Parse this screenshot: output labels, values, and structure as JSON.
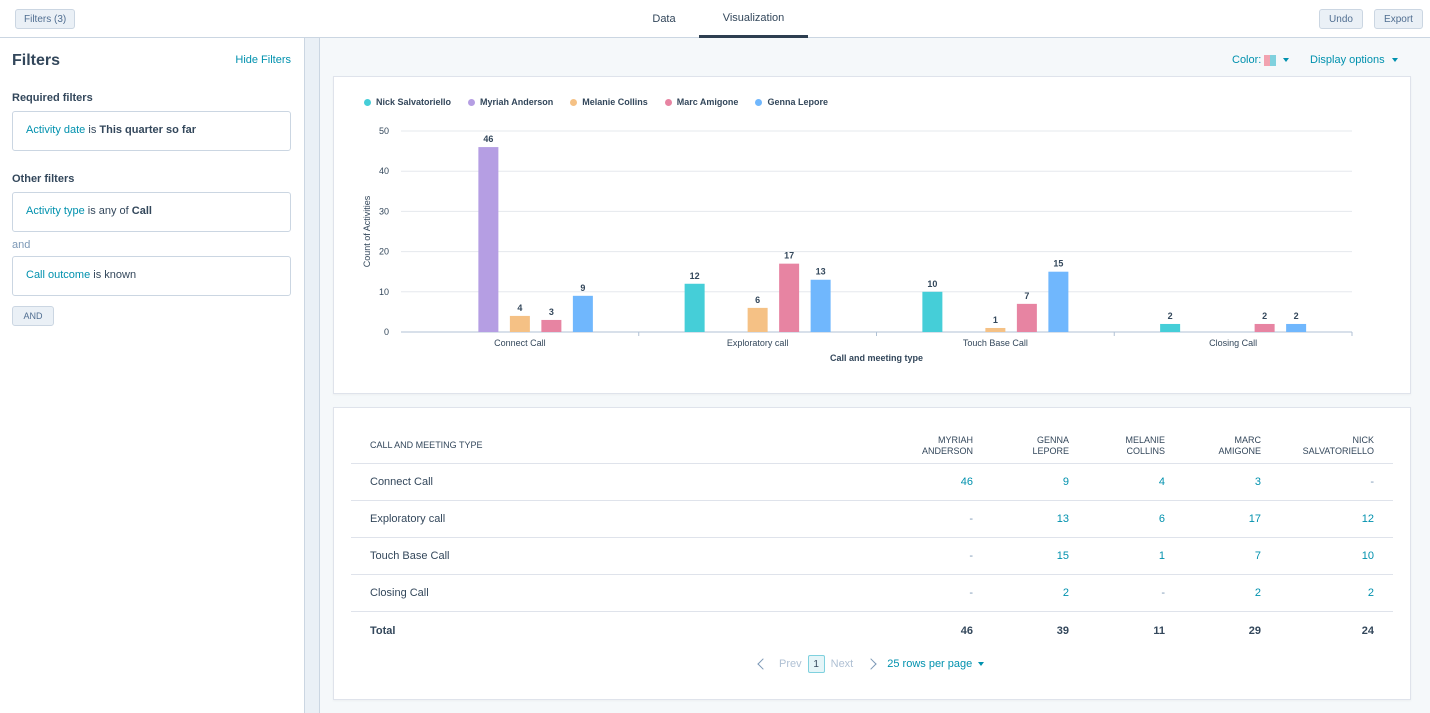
{
  "topbar": {
    "filters_button": "Filters (3)",
    "tabs": [
      {
        "label": "Data"
      },
      {
        "label": "Visualization"
      }
    ],
    "undo_label": "Undo",
    "export_label": "Export"
  },
  "filters_panel": {
    "title": "Filters",
    "hide_label": "Hide Filters",
    "required_label": "Required filters",
    "required": {
      "field": "Activity date",
      "op": "is",
      "value": "This quarter so far"
    },
    "other_label": "Other filters",
    "other": [
      {
        "field": "Activity type",
        "op": "is any of",
        "value": "Call"
      },
      {
        "field": "Call outcome",
        "op": "is known",
        "value": ""
      }
    ],
    "and_text": "and",
    "and_button": "AND"
  },
  "toolbar": {
    "color_label": "Color:",
    "display_options": "Display options"
  },
  "colors": {
    "Nick Salvatoriello": "#45ced8",
    "Myriah Anderson": "#b59ee3",
    "Melanie Collins": "#f5c185",
    "Marc Amigone": "#e784a2",
    "Genna Lepore": "#70b7fd"
  },
  "chart_data": {
    "type": "bar",
    "categories": [
      "Connect Call",
      "Exploratory call",
      "Touch Base Call",
      "Closing Call"
    ],
    "series": [
      {
        "name": "Nick Salvatoriello",
        "values": [
          null,
          12,
          10,
          2
        ]
      },
      {
        "name": "Myriah Anderson",
        "values": [
          46,
          null,
          null,
          null
        ]
      },
      {
        "name": "Melanie Collins",
        "values": [
          4,
          6,
          1,
          null
        ]
      },
      {
        "name": "Marc Amigone",
        "values": [
          3,
          17,
          7,
          2
        ]
      },
      {
        "name": "Genna Lepore",
        "values": [
          9,
          13,
          15,
          2
        ]
      }
    ],
    "xlabel": "Call and meeting type",
    "ylabel": "Count of Activities",
    "ylim": [
      0,
      50
    ],
    "yticks": [
      0,
      10,
      20,
      30,
      40,
      50
    ],
    "grid": true,
    "legend": "top-left"
  },
  "table": {
    "columns": [
      "CALL AND MEETING TYPE",
      "MYRIAH ANDERSON",
      "GENNA LEPORE",
      "MELANIE COLLINS",
      "MARC AMIGONE",
      "NICK SALVATORIELLO"
    ],
    "column_lines": [
      [
        "CALL AND MEETING TYPE"
      ],
      [
        "MYRIAH",
        "ANDERSON"
      ],
      [
        "GENNA",
        "LEPORE"
      ],
      [
        "MELANIE",
        "COLLINS"
      ],
      [
        "MARC",
        "AMIGONE"
      ],
      [
        "NICK",
        "SALVATORIELLO"
      ]
    ],
    "rows": [
      {
        "type": "Connect Call",
        "values": [
          "46",
          "9",
          "4",
          "3",
          "-"
        ]
      },
      {
        "type": "Exploratory call",
        "values": [
          "-",
          "13",
          "6",
          "17",
          "12"
        ]
      },
      {
        "type": "Touch Base Call",
        "values": [
          "-",
          "15",
          "1",
          "7",
          "10"
        ]
      },
      {
        "type": "Closing Call",
        "values": [
          "-",
          "2",
          "-",
          "2",
          "2"
        ]
      }
    ],
    "total": {
      "label": "Total",
      "values": [
        "46",
        "39",
        "11",
        "29",
        "24"
      ]
    }
  },
  "pagination": {
    "prev": "Prev",
    "page": "1",
    "next": "Next",
    "rows_per_page": "25 rows per page"
  }
}
